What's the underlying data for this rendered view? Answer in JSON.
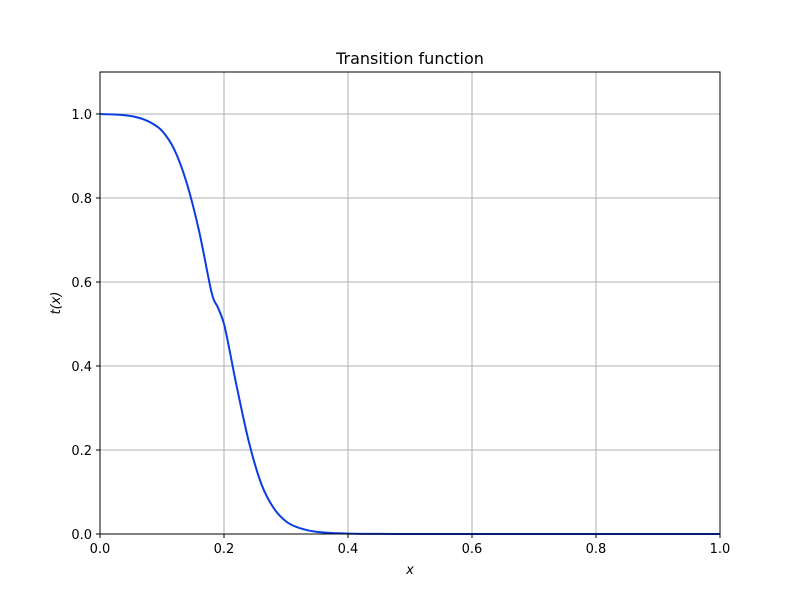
{
  "chart_data": {
    "type": "line",
    "title": "Transition function",
    "xlabel": "x",
    "ylabel": "t(x)",
    "xlim": [
      0,
      1
    ],
    "ylim": [
      0,
      1.1
    ],
    "grid": true,
    "xticks": [
      0.0,
      0.2,
      0.4,
      0.6,
      0.8,
      1.0
    ],
    "xtick_labels": [
      "0.0",
      "0.2",
      "0.4",
      "0.6",
      "0.8",
      "1.0"
    ],
    "yticks": [
      0.0,
      0.2,
      0.4,
      0.6,
      0.8,
      1.0
    ],
    "ytick_labels": [
      "0.0",
      "0.2",
      "0.4",
      "0.6",
      "0.8",
      "1.0"
    ],
    "series": [
      {
        "color": "#0a3de6",
        "x": [
          0.0,
          0.02,
          0.04,
          0.06,
          0.08,
          0.1,
          0.12,
          0.14,
          0.16,
          0.18,
          0.19,
          0.2,
          0.21,
          0.22,
          0.24,
          0.26,
          0.28,
          0.3,
          0.32,
          0.35,
          0.4,
          0.5,
          0.6,
          0.7,
          0.8,
          0.9,
          1.0
        ],
        "y": [
          1.0,
          0.999,
          0.997,
          0.992,
          0.981,
          0.96,
          0.915,
          0.835,
          0.72,
          0.575,
          0.54,
          0.5,
          0.43,
          0.355,
          0.22,
          0.12,
          0.062,
          0.03,
          0.015,
          0.005,
          0.001,
          0.0,
          0.0,
          0.0,
          0.0,
          0.0,
          0.0
        ]
      }
    ]
  }
}
